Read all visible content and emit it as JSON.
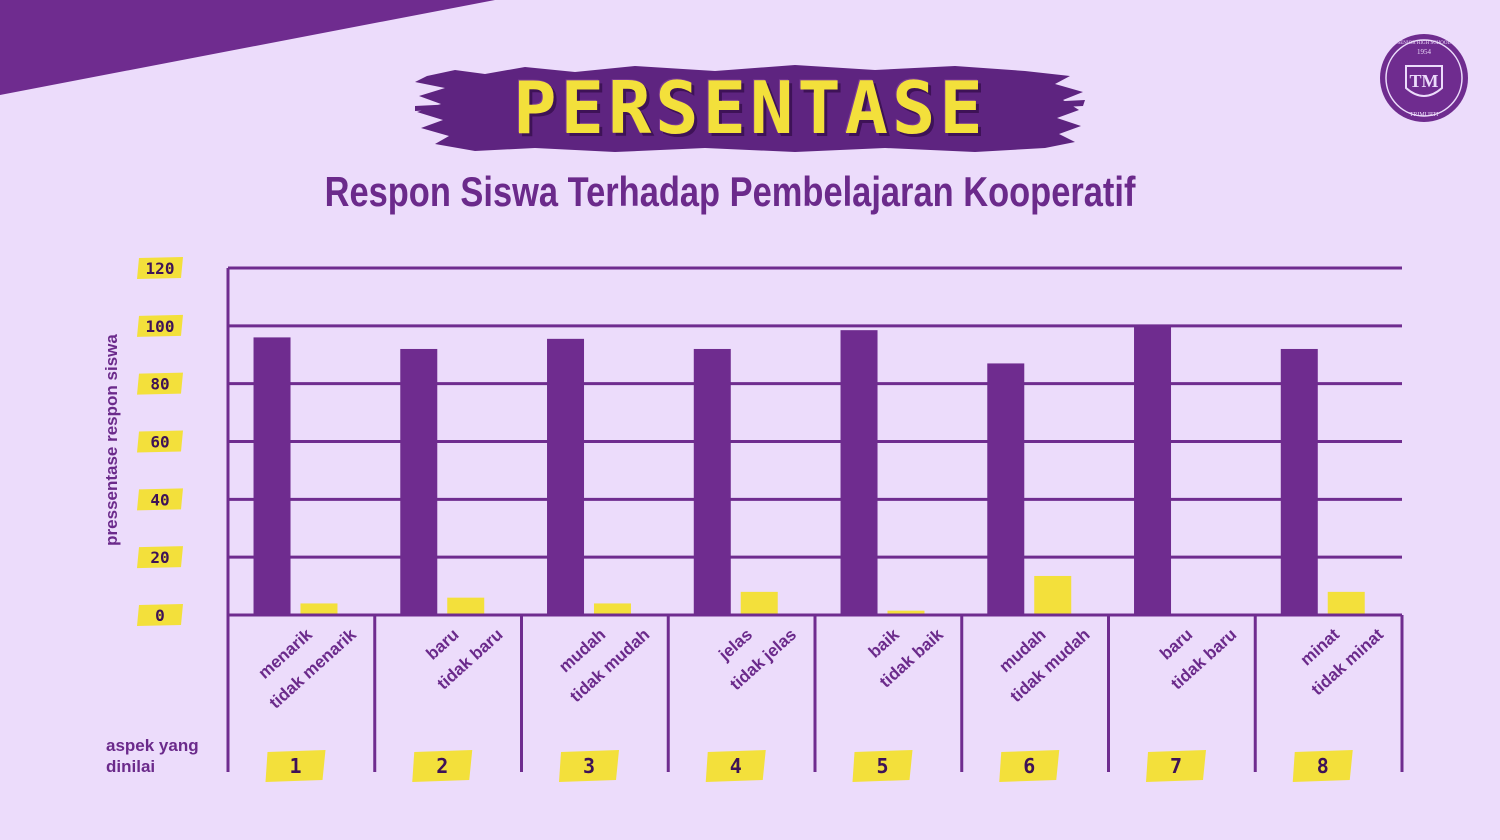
{
  "header": {
    "title": "PERSENTASE",
    "subtitle": "Respon Siswa Terhadap Pembelajaran Kooperatif"
  },
  "logo": {
    "ring_text": "SENIOR HIGH SCHOOL",
    "year": "1954",
    "monogram": "TM",
    "bottom_text": "TRIMURTI"
  },
  "colors": {
    "background": "#ecdcfb",
    "primary": "#6f2c8f",
    "accent": "#f3e03b",
    "text": "#6b2a8b"
  },
  "chart_data": {
    "type": "bar",
    "title": "Respon Siswa Terhadap Pembelajaran Kooperatif",
    "ylabel": "pressentase respon siswa",
    "xlabel": "aspek yang dinilai",
    "ylim": [
      0,
      120
    ],
    "yticks": [
      0,
      20,
      40,
      60,
      80,
      100,
      120
    ],
    "grid": true,
    "groups": [
      {
        "aspect": "1",
        "categories": [
          "menarik",
          "tidak menarik"
        ],
        "values": [
          96,
          4
        ]
      },
      {
        "aspect": "2",
        "categories": [
          "baru",
          "tidak baru"
        ],
        "values": [
          92,
          6
        ]
      },
      {
        "aspect": "3",
        "categories": [
          "mudah",
          "tidak mudah"
        ],
        "values": [
          95.5,
          4
        ]
      },
      {
        "aspect": "4",
        "categories": [
          "jelas",
          "tidak jelas"
        ],
        "values": [
          92,
          8
        ]
      },
      {
        "aspect": "5",
        "categories": [
          "baik",
          "tidak baik"
        ],
        "values": [
          98.5,
          1.5
        ]
      },
      {
        "aspect": "6",
        "categories": [
          "mudah",
          "tidak mudah"
        ],
        "values": [
          87,
          13.5
        ]
      },
      {
        "aspect": "7",
        "categories": [
          "baru",
          "tidak baru"
        ],
        "values": [
          100,
          0
        ]
      },
      {
        "aspect": "8",
        "categories": [
          "minat",
          "tidak minat"
        ],
        "values": [
          92,
          8
        ]
      }
    ]
  }
}
